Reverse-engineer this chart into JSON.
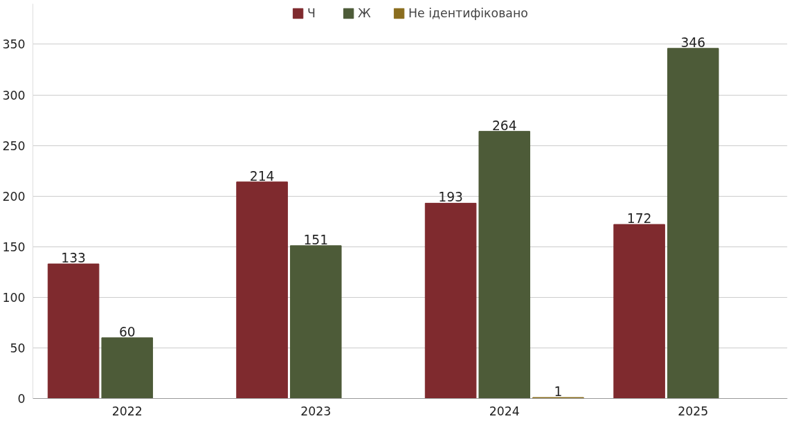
{
  "chart_data": {
    "type": "bar",
    "categories": [
      "2022",
      "2023",
      "2024",
      "2025"
    ],
    "series": [
      {
        "name": "Ч",
        "color": "#7f2a2e",
        "values": [
          133,
          214,
          193,
          172
        ]
      },
      {
        "name": "Ж",
        "color": "#4d5b38",
        "values": [
          60,
          151,
          264,
          346
        ]
      },
      {
        "name": "Не ідентифіковано",
        "color": "#8a6d1e",
        "values": [
          null,
          null,
          1,
          null
        ]
      }
    ],
    "ylim": [
      0,
      390
    ],
    "yticks": [
      0,
      50,
      100,
      150,
      200,
      250,
      300,
      350
    ],
    "grid": "y",
    "legend": "top",
    "data_labels": true
  }
}
